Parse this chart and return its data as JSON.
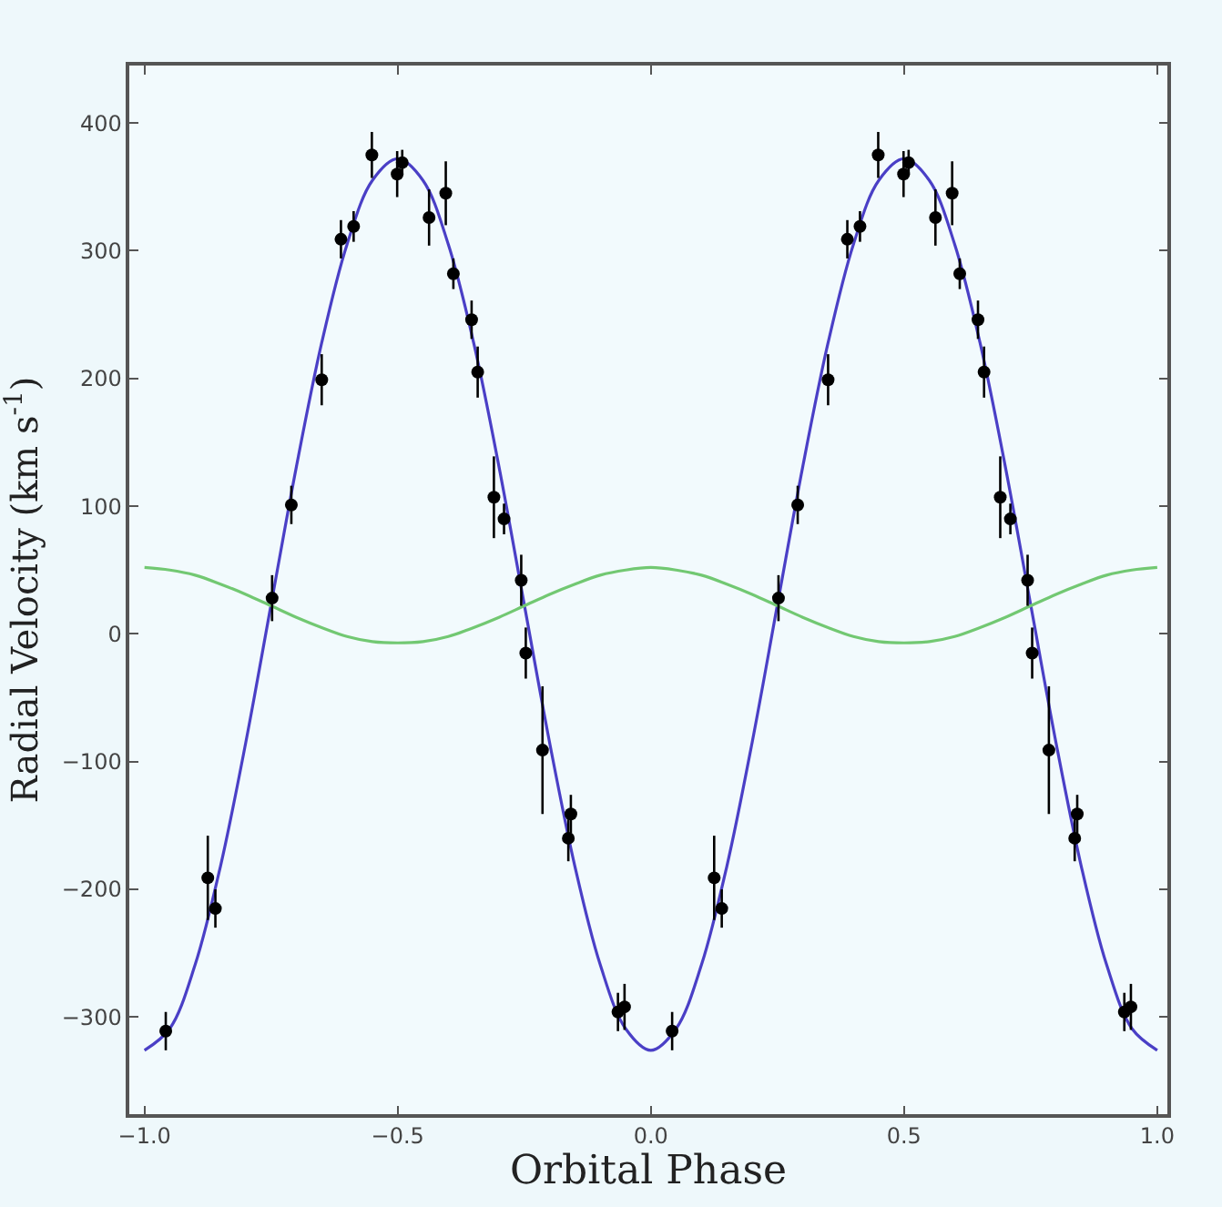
{
  "chart_data": {
    "type": "scatter",
    "xlabel": "Orbital Phase",
    "ylabel": "Radial Velocity (km s$^{-1}$)",
    "xlim": [
      -1.03,
      1.02
    ],
    "ylim": [
      -376,
      445
    ],
    "xticks": [
      {
        "value": -1.0,
        "label": "−1.0"
      },
      {
        "value": -0.5,
        "label": "−0.5"
      },
      {
        "value": 0.0,
        "label": "0.0"
      },
      {
        "value": 0.5,
        "label": "0.5"
      },
      {
        "value": 1.0,
        "label": "1.0"
      }
    ],
    "yticks": [
      {
        "value": -300,
        "label": "−300"
      },
      {
        "value": -200,
        "label": "−200"
      },
      {
        "value": -100,
        "label": "−100"
      },
      0,
      100,
      200,
      300,
      400
    ],
    "grid": false,
    "series": [
      {
        "type": "line",
        "color": "#4a3fc6",
        "marker": "none",
        "line_style": "solid",
        "x": [
          -1.0,
          -0.95,
          -0.9,
          -0.85,
          -0.8,
          -0.75,
          -0.7,
          -0.65,
          -0.6,
          -0.55,
          -0.5,
          -0.45,
          -0.4,
          -0.35,
          -0.3,
          -0.25,
          -0.2,
          -0.15,
          -0.1,
          -0.05,
          0.0,
          0.05,
          0.1,
          0.15,
          0.2,
          0.25,
          0.3,
          0.35,
          0.4,
          0.45,
          0.5,
          0.55,
          0.6,
          0.65,
          0.7,
          0.75,
          0.8,
          0.85,
          0.9,
          0.95,
          1.0
        ],
        "values": [
          -326,
          -309,
          -259,
          -182,
          -85,
          23,
          131,
          228,
          305,
          355,
          372,
          355,
          305,
          228,
          131,
          23,
          -85,
          -182,
          -259,
          -309,
          -326,
          -309,
          -259,
          -182,
          -85,
          23,
          131,
          228,
          305,
          355,
          372,
          355,
          305,
          228,
          131,
          23,
          -85,
          -182,
          -259,
          -309,
          -326
        ]
      },
      {
        "type": "line",
        "color": "#72c872",
        "marker": "none",
        "line_style": "solid",
        "x": [
          -1.0,
          -0.95,
          -0.9,
          -0.85,
          -0.8,
          -0.75,
          -0.7,
          -0.65,
          -0.6,
          -0.55,
          -0.5,
          -0.45,
          -0.4,
          -0.35,
          -0.3,
          -0.25,
          -0.2,
          -0.15,
          -0.1,
          -0.05,
          0.0,
          0.05,
          0.1,
          0.15,
          0.2,
          0.25,
          0.3,
          0.35,
          0.4,
          0.45,
          0.5,
          0.55,
          0.6,
          0.65,
          0.7,
          0.75,
          0.8,
          0.85,
          0.9,
          0.95,
          1.0
        ],
        "values": [
          52,
          50,
          46,
          39,
          31,
          22,
          13,
          5,
          -2,
          -6,
          -7,
          -6,
          -2,
          5,
          13,
          22,
          31,
          39,
          46,
          50,
          52,
          50,
          46,
          39,
          31,
          22,
          13,
          5,
          -2,
          -6,
          -7,
          -6,
          -2,
          5,
          13,
          22,
          31,
          39,
          46,
          50,
          52
        ]
      },
      {
        "color": "#000000",
        "marker": "circle",
        "x": [
          -0.958,
          -0.875,
          -0.86,
          -0.748,
          -0.71,
          -0.65,
          -0.612,
          -0.587,
          -0.551,
          -0.501,
          -0.491,
          -0.438,
          -0.405,
          -0.39,
          -0.354,
          -0.342,
          -0.31,
          -0.29,
          -0.256,
          -0.247,
          -0.214,
          -0.163,
          -0.158,
          -0.065,
          -0.052,
          0.042,
          0.125,
          0.14,
          0.252,
          0.29,
          0.35,
          0.388,
          0.413,
          0.449,
          0.499,
          0.509,
          0.562,
          0.595,
          0.61,
          0.646,
          0.658,
          0.69,
          0.71,
          0.744,
          0.753,
          0.786,
          0.837,
          0.842,
          0.935,
          0.948
        ],
        "values": [
          -311,
          -191,
          -215,
          28,
          101,
          199,
          309,
          319,
          375,
          360,
          369,
          326,
          345,
          282,
          246,
          205,
          107,
          90,
          42,
          -15,
          -91,
          -160,
          -141,
          -296,
          -292,
          -311,
          -191,
          -215,
          28,
          101,
          199,
          309,
          319,
          375,
          360,
          369,
          326,
          345,
          282,
          246,
          205,
          107,
          90,
          42,
          -15,
          -91,
          -160,
          -141,
          -296,
          -292
        ],
        "errors": [
          15,
          33,
          15,
          18,
          15,
          20,
          15,
          12,
          18,
          18,
          10,
          22,
          25,
          12,
          15,
          20,
          32,
          12,
          20,
          20,
          50,
          18,
          15,
          15,
          18,
          15,
          33,
          15,
          18,
          15,
          20,
          15,
          12,
          18,
          18,
          10,
          22,
          25,
          12,
          15,
          20,
          32,
          12,
          20,
          20,
          50,
          18,
          15,
          15,
          18
        ]
      }
    ]
  }
}
